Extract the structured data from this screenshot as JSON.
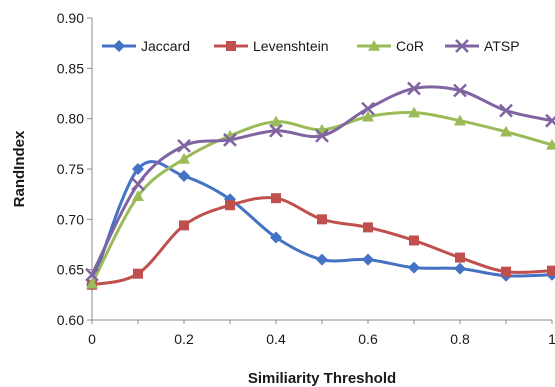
{
  "chart_data": {
    "type": "line",
    "title": "",
    "xlabel": "Similiarity Threshold",
    "ylabel": "RandIndex",
    "xlim": [
      0,
      1
    ],
    "ylim": [
      0.6,
      0.9
    ],
    "x": [
      0,
      0.1,
      0.2,
      0.3,
      0.4,
      0.5,
      0.6,
      0.7,
      0.8,
      0.9,
      1.0
    ],
    "x_tick_labels": [
      "0",
      "0.2",
      "0.4",
      "0.6",
      "0.8",
      "1"
    ],
    "x_tick_values": [
      0,
      0.2,
      0.4,
      0.6,
      0.8,
      1.0
    ],
    "y_tick_labels": [
      "0.60",
      "0.65",
      "0.70",
      "0.75",
      "0.80",
      "0.85",
      "0.90"
    ],
    "y_tick_values": [
      0.6,
      0.65,
      0.7,
      0.75,
      0.8,
      0.85,
      0.9
    ],
    "grid": false,
    "legend_position": "top",
    "smooth": true,
    "series": [
      {
        "name": "Jaccard",
        "color": "#4472C4",
        "marker": "diamond",
        "values": [
          0.635,
          0.75,
          0.743,
          0.72,
          0.682,
          0.66,
          0.66,
          0.652,
          0.651,
          0.644,
          0.645
        ]
      },
      {
        "name": "Levenshtein",
        "color": "#C0504D",
        "marker": "square",
        "values": [
          0.635,
          0.646,
          0.694,
          0.714,
          0.721,
          0.7,
          0.692,
          0.679,
          0.662,
          0.648,
          0.649
        ]
      },
      {
        "name": "CoR",
        "color": "#9BBB59",
        "marker": "triangle",
        "values": [
          0.636,
          0.723,
          0.76,
          0.783,
          0.797,
          0.789,
          0.802,
          0.806,
          0.798,
          0.787,
          0.774
        ]
      },
      {
        "name": "ATSP",
        "color": "#8064A2",
        "marker": "x",
        "values": [
          0.645,
          0.735,
          0.773,
          0.779,
          0.788,
          0.783,
          0.81,
          0.83,
          0.828,
          0.808,
          0.798
        ]
      }
    ]
  }
}
